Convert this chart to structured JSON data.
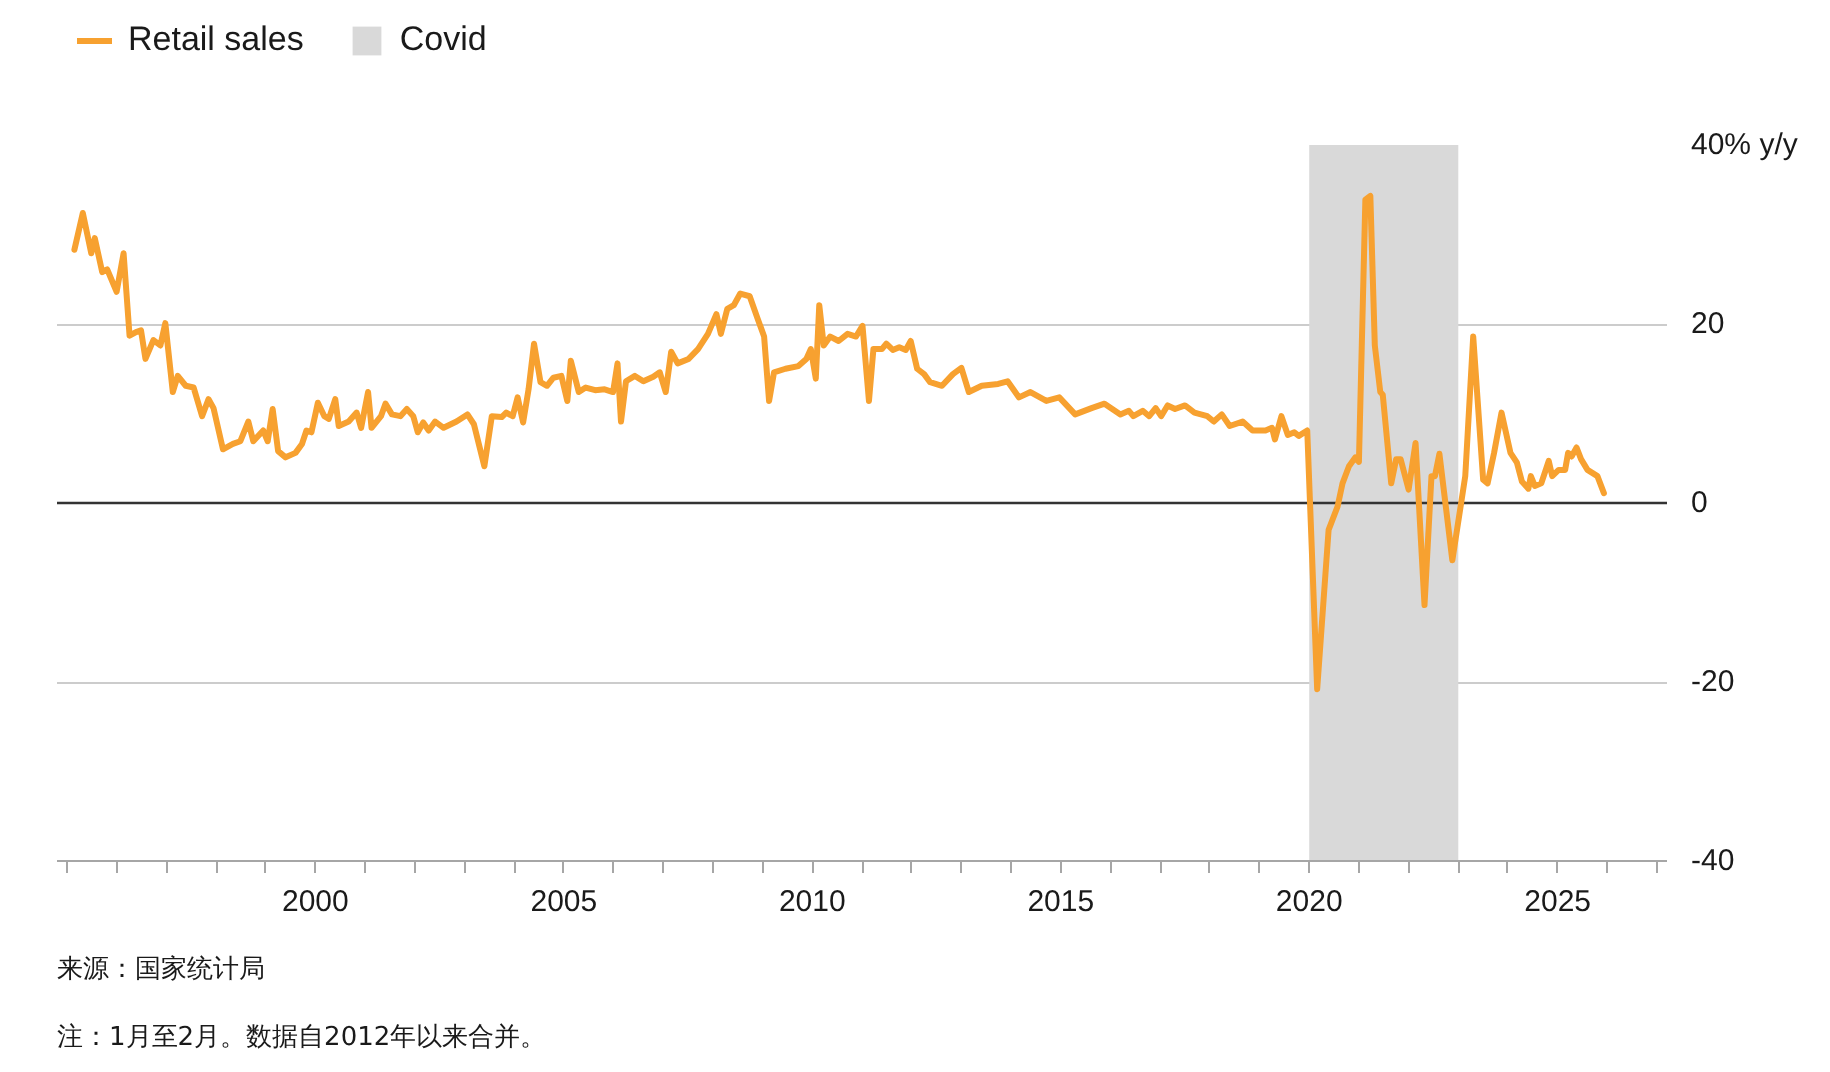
{
  "chart_data": {
    "type": "line",
    "x": [
      1995.15,
      1995.32,
      1995.49,
      1995.56,
      1995.71,
      1995.81,
      1996.0,
      1996.14,
      1996.26,
      1996.39,
      1996.49,
      1996.58,
      1996.74,
      1996.88,
      1996.98,
      1997.13,
      1997.23,
      1997.39,
      1997.55,
      1997.72,
      1997.85,
      1997.95,
      1998.14,
      1998.34,
      1998.49,
      1998.65,
      1998.75,
      1998.95,
      1999.04,
      1999.14,
      1999.25,
      1999.4,
      1999.6,
      1999.73,
      1999.82,
      1999.92,
      2000.05,
      2000.18,
      2000.27,
      2000.4,
      2000.47,
      2000.67,
      2000.83,
      2000.92,
      2001.06,
      2001.13,
      2001.32,
      2001.41,
      2001.54,
      2001.71,
      2001.84,
      2001.97,
      2002.06,
      2002.17,
      2002.28,
      2002.41,
      2002.58,
      2002.84,
      2003.06,
      2003.19,
      2003.4,
      2003.55,
      2003.75,
      2003.84,
      2003.97,
      2004.07,
      2004.18,
      2004.29,
      2004.4,
      2004.53,
      2004.66,
      2004.79,
      2004.95,
      2005.07,
      2005.14,
      2005.3,
      2005.44,
      2005.63,
      2005.82,
      2005.99,
      2006.08,
      2006.15,
      2006.25,
      2006.43,
      2006.6,
      2006.8,
      2006.93,
      2007.05,
      2007.16,
      2007.29,
      2007.51,
      2007.7,
      2007.9,
      2008.07,
      2008.16,
      2008.29,
      2008.42,
      2008.55,
      2008.74,
      2008.9,
      2009.03,
      2009.13,
      2009.23,
      2009.46,
      2009.72,
      2009.88,
      2009.97,
      2010.07,
      2010.14,
      2010.23,
      2010.36,
      2010.53,
      2010.71,
      2010.88,
      2011.01,
      2011.14,
      2011.23,
      2011.4,
      2011.49,
      2011.62,
      2011.75,
      2011.88,
      2011.98,
      2012.11,
      2012.25,
      2012.37,
      2012.61,
      2012.83,
      2013.0,
      2013.15,
      2013.41,
      2013.74,
      2013.93,
      2014.16,
      2014.39,
      2014.71,
      2014.97,
      2015.29,
      2015.62,
      2015.88,
      2016.2,
      2016.37,
      2016.46,
      2016.65,
      2016.78,
      2016.91,
      2017.02,
      2017.15,
      2017.3,
      2017.5,
      2017.69,
      2017.95,
      2018.08,
      2018.24,
      2018.4,
      2018.66,
      2018.86,
      2019.12,
      2019.25,
      2019.31,
      2019.44,
      2019.57,
      2019.7,
      2019.79,
      2019.96,
      2020.16,
      2020.39,
      2020.57,
      2020.67,
      2020.8,
      2020.93,
      2021.0,
      2021.13,
      2021.23,
      2021.32,
      2021.43,
      2021.48,
      2021.65,
      2021.75,
      2021.84,
      2022.0,
      2022.14,
      2022.32,
      2022.46,
      2022.53,
      2022.62,
      2022.88,
      2023.14,
      2023.3,
      2023.5,
      2023.59,
      2023.72,
      2023.87,
      2024.05,
      2024.18,
      2024.28,
      2024.41,
      2024.46,
      2024.54,
      2024.67,
      2024.82,
      2024.89,
      2025.02,
      2025.15,
      2025.21,
      2025.28,
      2025.38,
      2025.47,
      2025.6,
      2025.8,
      2025.93
    ],
    "series": [
      {
        "name": "Retail sales",
        "color": "#f7a130",
        "values": [
          28.3,
          32.4,
          27.9,
          29.6,
          25.8,
          26.1,
          23.6,
          27.9,
          18.7,
          19.1,
          19.3,
          16.1,
          18.2,
          17.6,
          20.1,
          12.4,
          14.2,
          13.1,
          12.9,
          9.7,
          11.6,
          10.6,
          6.0,
          6.6,
          6.9,
          9.1,
          6.9,
          8.1,
          6.9,
          10.5,
          5.8,
          5.1,
          5.6,
          6.6,
          8.1,
          7.9,
          11.2,
          9.7,
          9.4,
          11.6,
          8.6,
          9.1,
          10.1,
          8.4,
          12.4,
          8.4,
          9.7,
          11.1,
          9.9,
          9.7,
          10.5,
          9.7,
          7.9,
          9.0,
          8.1,
          9.1,
          8.4,
          9.1,
          9.9,
          8.8,
          4.1,
          9.7,
          9.6,
          10.1,
          9.7,
          11.8,
          9.0,
          12.7,
          17.8,
          13.5,
          13.1,
          14.0,
          14.2,
          11.4,
          15.9,
          12.4,
          12.9,
          12.6,
          12.7,
          12.4,
          15.6,
          9.1,
          13.6,
          14.2,
          13.6,
          14.1,
          14.6,
          12.4,
          16.9,
          15.6,
          16.1,
          17.2,
          18.9,
          21.1,
          18.9,
          21.7,
          22.1,
          23.4,
          23.1,
          20.6,
          18.6,
          11.4,
          14.6,
          15.0,
          15.3,
          16.1,
          17.2,
          13.9,
          22.1,
          17.6,
          18.6,
          18.1,
          18.9,
          18.6,
          19.8,
          11.4,
          17.2,
          17.2,
          17.8,
          17.1,
          17.4,
          17.1,
          18.1,
          15.0,
          14.4,
          13.5,
          13.1,
          14.4,
          15.1,
          12.4,
          13.1,
          13.3,
          13.6,
          11.8,
          12.4,
          11.4,
          11.8,
          9.9,
          10.6,
          11.1,
          9.9,
          10.3,
          9.7,
          10.3,
          9.7,
          10.6,
          9.7,
          10.9,
          10.5,
          10.9,
          10.1,
          9.7,
          9.1,
          9.9,
          8.6,
          9.1,
          8.1,
          8.1,
          8.4,
          7.1,
          9.7,
          7.6,
          7.9,
          7.5,
          8.1,
          -20.8,
          -3.0,
          -0.4,
          2.2,
          4.1,
          5.1,
          4.6,
          33.9,
          34.3,
          17.6,
          12.4,
          12.1,
          2.2,
          4.9,
          4.9,
          1.5,
          6.7,
          -11.4,
          3.0,
          3.0,
          5.5,
          -6.4,
          3.0,
          18.6,
          2.6,
          2.2,
          5.6,
          10.1,
          5.6,
          4.5,
          2.4,
          1.6,
          3.0,
          1.9,
          2.2,
          4.7,
          3.0,
          3.7,
          3.7,
          5.6,
          5.2,
          6.2,
          4.9,
          3.7,
          3.0,
          1.1
        ]
      }
    ],
    "xlim": [
      1994.8,
      2027.2
    ],
    "ylim": [
      -40,
      40
    ],
    "xticks": [
      {
        "value": 1995,
        "label": null
      },
      {
        "value": 1996,
        "label": null
      },
      {
        "value": 1997,
        "label": null
      },
      {
        "value": 1998,
        "label": null
      },
      {
        "value": 1999,
        "label": null
      },
      2000,
      {
        "value": 2001,
        "label": null
      },
      {
        "value": 2002,
        "label": null
      },
      {
        "value": 2003,
        "label": null
      },
      {
        "value": 2004,
        "label": null
      },
      2005,
      {
        "value": 2006,
        "label": null
      },
      {
        "value": 2007,
        "label": null
      },
      {
        "value": 2008,
        "label": null
      },
      {
        "value": 2009,
        "label": null
      },
      2010,
      {
        "value": 2011,
        "label": null
      },
      {
        "value": 2012,
        "label": null
      },
      {
        "value": 2013,
        "label": null
      },
      {
        "value": 2014,
        "label": null
      },
      2015,
      {
        "value": 2016,
        "label": null
      },
      {
        "value": 2017,
        "label": null
      },
      {
        "value": 2018,
        "label": null
      },
      {
        "value": 2019,
        "label": null
      },
      2020,
      {
        "value": 2021,
        "label": null
      },
      {
        "value": 2022,
        "label": null
      },
      {
        "value": 2023,
        "label": null
      },
      {
        "value": 2024,
        "label": null
      },
      2025,
      {
        "value": 2026,
        "label": null
      },
      {
        "value": 2027,
        "label": null
      }
    ],
    "yticks": [
      -40,
      -20,
      0,
      20,
      {
        "value": 40,
        "label": "40% y/y"
      }
    ],
    "grid": "y",
    "legend": "top left",
    "bands": [
      {
        "axis": "x",
        "from": 2020,
        "to": 2023,
        "label": "Covid",
        "color": "#d9d9d9"
      }
    ],
    "ref_lines": [
      {
        "axis": "y",
        "value": 0,
        "color": "#333333"
      }
    ],
    "annotations": [
      "来源：国家统计局",
      "注：1月至2月。数据自2012年以来合并。"
    ]
  }
}
